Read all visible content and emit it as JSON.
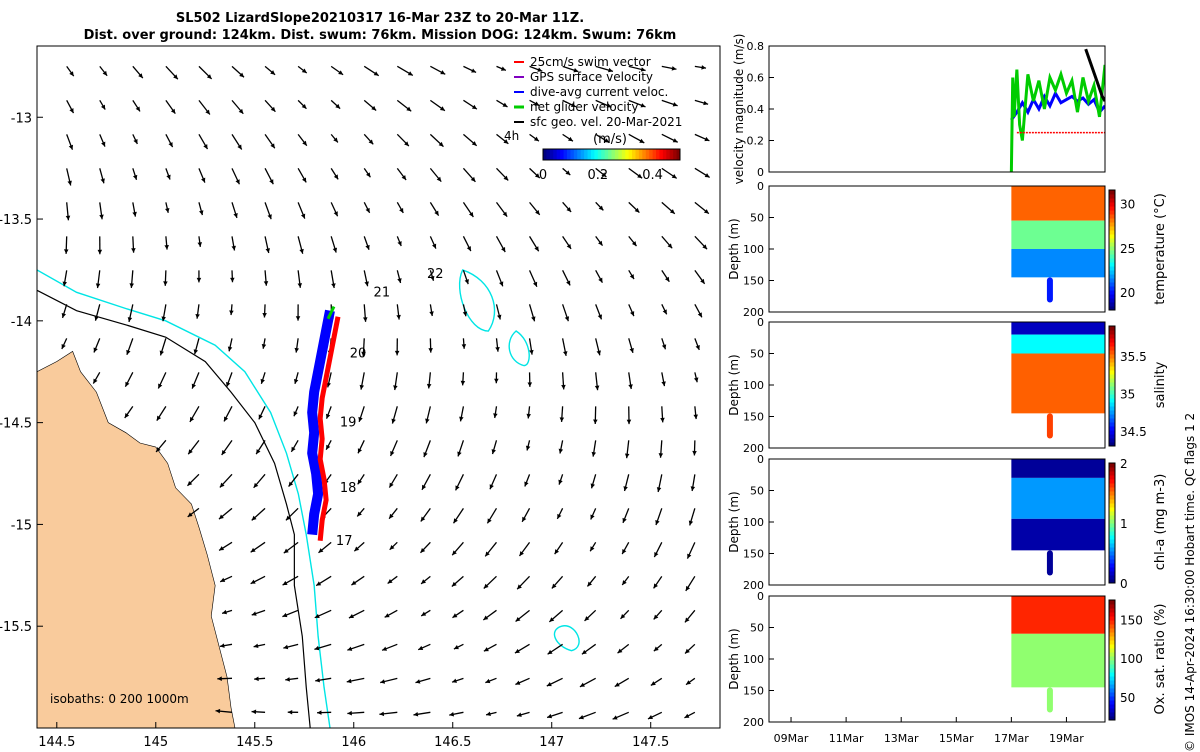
{
  "title_line1": "SL502 LizardSlope20210317 16-Mar 23Z to 20-Mar 11Z.",
  "title_line2": "Dist. over ground: 124km. Dist. swum: 76km. Mission DOG: 124km. Swum: 76km",
  "credit": "© IMOS 14-Apr-2024 16:30:00 Hobart time. QC flags 1  2",
  "colors": {
    "land": "#f9cb9c",
    "isobath_shallow": "#000000",
    "isobath_deep": "#00e5e5",
    "swim": "#ff0000",
    "gps": "#8000c0",
    "dive_avg": "#0000ff",
    "net": "#00cc00",
    "sfc": "#000000"
  },
  "chart_data": [
    {
      "type": "map",
      "name": "glider track map",
      "xlim": [
        144.4,
        147.85
      ],
      "ylim": [
        -16.0,
        -12.65
      ],
      "xticks": [
        144.5,
        145,
        145.5,
        146,
        146.5,
        147,
        147.5
      ],
      "xtick_labels": [
        "144.5",
        "145",
        "145.5",
        "146",
        "146.5",
        "147",
        "147.5"
      ],
      "yticks": [
        -13,
        -13.5,
        -14,
        -14.5,
        -15,
        -15.5
      ],
      "ytick_labels": [
        "-13",
        "-13.5",
        "-14",
        "-14.5",
        "-15",
        "-15.5"
      ],
      "legend": {
        "placement": "top-right",
        "entries": [
          "25cm/s swim vector",
          "GPS surface velocity",
          "dive-avg current veloc.",
          "net glider velocity",
          "sfc geo. vel. 20-Mar-2021"
        ]
      },
      "scale_label": "4h",
      "colorbar": {
        "label": "(m/s)",
        "ticks": [
          0,
          0.2,
          0.4
        ],
        "tick_labels": [
          "0",
          "0.2",
          "0.4"
        ],
        "range": [
          0,
          0.5
        ]
      },
      "day_labels": [
        {
          "text": "21",
          "lon": 146.1,
          "lat": -13.88
        },
        {
          "text": "22",
          "lon": 146.37,
          "lat": -13.79
        },
        {
          "text": "20",
          "lon": 145.98,
          "lat": -14.18
        },
        {
          "text": "19",
          "lon": 145.93,
          "lat": -14.52
        },
        {
          "text": "18",
          "lon": 145.93,
          "lat": -14.84
        },
        {
          "text": "17",
          "lon": 145.91,
          "lat": -15.1
        }
      ],
      "isobaths_label": "isobaths: 0   200  1000m"
    },
    {
      "type": "line",
      "name": "velocity panel",
      "ylabel": "velocity magnitude (m/s)",
      "ylim": [
        0,
        0.8
      ],
      "yticks": [
        0,
        0.2,
        0.4,
        0.6,
        0.8
      ],
      "ytick_labels": [
        "0",
        "0.2",
        "0.4",
        "0.6",
        "0.8"
      ],
      "series": [
        {
          "name": "dive-avg current veloc.",
          "color": "#0000ff",
          "x": [
            17.0,
            17.2,
            17.4,
            17.6,
            17.8,
            18.0,
            18.2,
            18.4,
            18.6,
            18.8,
            19.0,
            19.2,
            19.4,
            19.6,
            19.8,
            20.0,
            20.2,
            20.4
          ],
          "y": [
            0.33,
            0.38,
            0.44,
            0.38,
            0.46,
            0.4,
            0.48,
            0.42,
            0.5,
            0.44,
            0.46,
            0.48,
            0.45,
            0.47,
            0.43,
            0.46,
            0.38,
            0.42
          ]
        },
        {
          "name": "net glider velocity",
          "color": "#00cc00",
          "x": [
            17.0,
            17.05,
            17.1,
            17.2,
            17.3,
            17.4,
            17.6,
            17.8,
            18.0,
            18.2,
            18.4,
            18.6,
            18.8,
            19.0,
            19.2,
            19.4,
            19.6,
            19.8,
            20.0,
            20.2,
            20.4
          ],
          "y": [
            0.0,
            0.6,
            0.35,
            0.65,
            0.3,
            0.2,
            0.62,
            0.45,
            0.58,
            0.4,
            0.6,
            0.52,
            0.62,
            0.5,
            0.58,
            0.38,
            0.6,
            0.45,
            0.55,
            0.35,
            0.68
          ]
        },
        {
          "name": "25cm/s swim vector",
          "color": "#ff0000",
          "x": [
            17.2,
            20.4
          ],
          "y": [
            0.25,
            0.25
          ]
        },
        {
          "name": "sfc geo. vel. 20-Mar-2021",
          "color": "#000000",
          "x": [
            19.7,
            19.9,
            20.1,
            20.3,
            20.4
          ],
          "y": [
            0.78,
            0.68,
            0.58,
            0.48,
            0.45
          ]
        }
      ]
    },
    {
      "type": "heatmap",
      "name": "temperature panel",
      "ylabel": "Depth (m)",
      "ylim": [
        0,
        200
      ],
      "yticks": [
        0,
        50,
        100,
        150,
        200
      ],
      "colorbar_label": "temperature (°C)",
      "colorbar_range": [
        18,
        31.5
      ],
      "colorbar_ticks": [
        20,
        25,
        30
      ],
      "layers": [
        {
          "depth_to": 55,
          "value": 28.5
        },
        {
          "depth_to": 100,
          "value": 24.5
        },
        {
          "depth_to": 145,
          "value": 21.5
        }
      ],
      "spike": {
        "x": 18.4,
        "depth_to": 185,
        "value": 20
      }
    },
    {
      "type": "heatmap",
      "name": "salinity panel",
      "ylabel": "Depth (m)",
      "ylim": [
        0,
        200
      ],
      "yticks": [
        0,
        50,
        100,
        150,
        200
      ],
      "colorbar_label": "salinity",
      "colorbar_range": [
        34.3,
        35.9
      ],
      "colorbar_ticks": [
        34.5,
        35,
        35.5
      ],
      "layers": [
        {
          "depth_to": 20,
          "value": 34.4
        },
        {
          "depth_to": 50,
          "value": 34.9
        },
        {
          "depth_to": 145,
          "value": 35.55
        }
      ],
      "spike": {
        "x": 18.4,
        "depth_to": 185,
        "value": 35.6
      }
    },
    {
      "type": "heatmap",
      "name": "chlorophyll panel",
      "ylabel": "Depth (m)",
      "ylim": [
        0,
        200
      ],
      "yticks": [
        0,
        50,
        100,
        150,
        200
      ],
      "colorbar_label": "chl-a (mg m-3)",
      "colorbar_range": [
        0,
        2
      ],
      "colorbar_ticks": [
        0,
        1,
        2
      ],
      "layers": [
        {
          "depth_to": 30,
          "value": 0.05
        },
        {
          "depth_to": 95,
          "value": 0.55
        },
        {
          "depth_to": 145,
          "value": 0.08
        }
      ],
      "spike": {
        "x": 18.4,
        "depth_to": 185,
        "value": 0.05
      }
    },
    {
      "type": "heatmap",
      "name": "oxygen panel",
      "ylabel": "Depth (m)",
      "ylim": [
        0,
        200
      ],
      "yticks": [
        0,
        50,
        100,
        150,
        200
      ],
      "colorbar_label": "Ox. sat. ratio (%)",
      "colorbar_range": [
        20,
        175
      ],
      "colorbar_ticks": [
        50,
        100,
        150
      ],
      "layers": [
        {
          "depth_to": 60,
          "value": 150
        },
        {
          "depth_to": 145,
          "value": 100
        }
      ],
      "spike": {
        "x": 18.4,
        "depth_to": 185,
        "value": 100
      }
    },
    {
      "type": "axis",
      "name": "time axis",
      "xlim": [
        8.2,
        20.4
      ],
      "xticks": [
        9,
        11,
        13,
        15,
        17,
        19
      ],
      "xtick_labels": [
        "09Mar",
        "11Mar",
        "13Mar",
        "15Mar",
        "17Mar",
        "19Mar"
      ]
    }
  ]
}
